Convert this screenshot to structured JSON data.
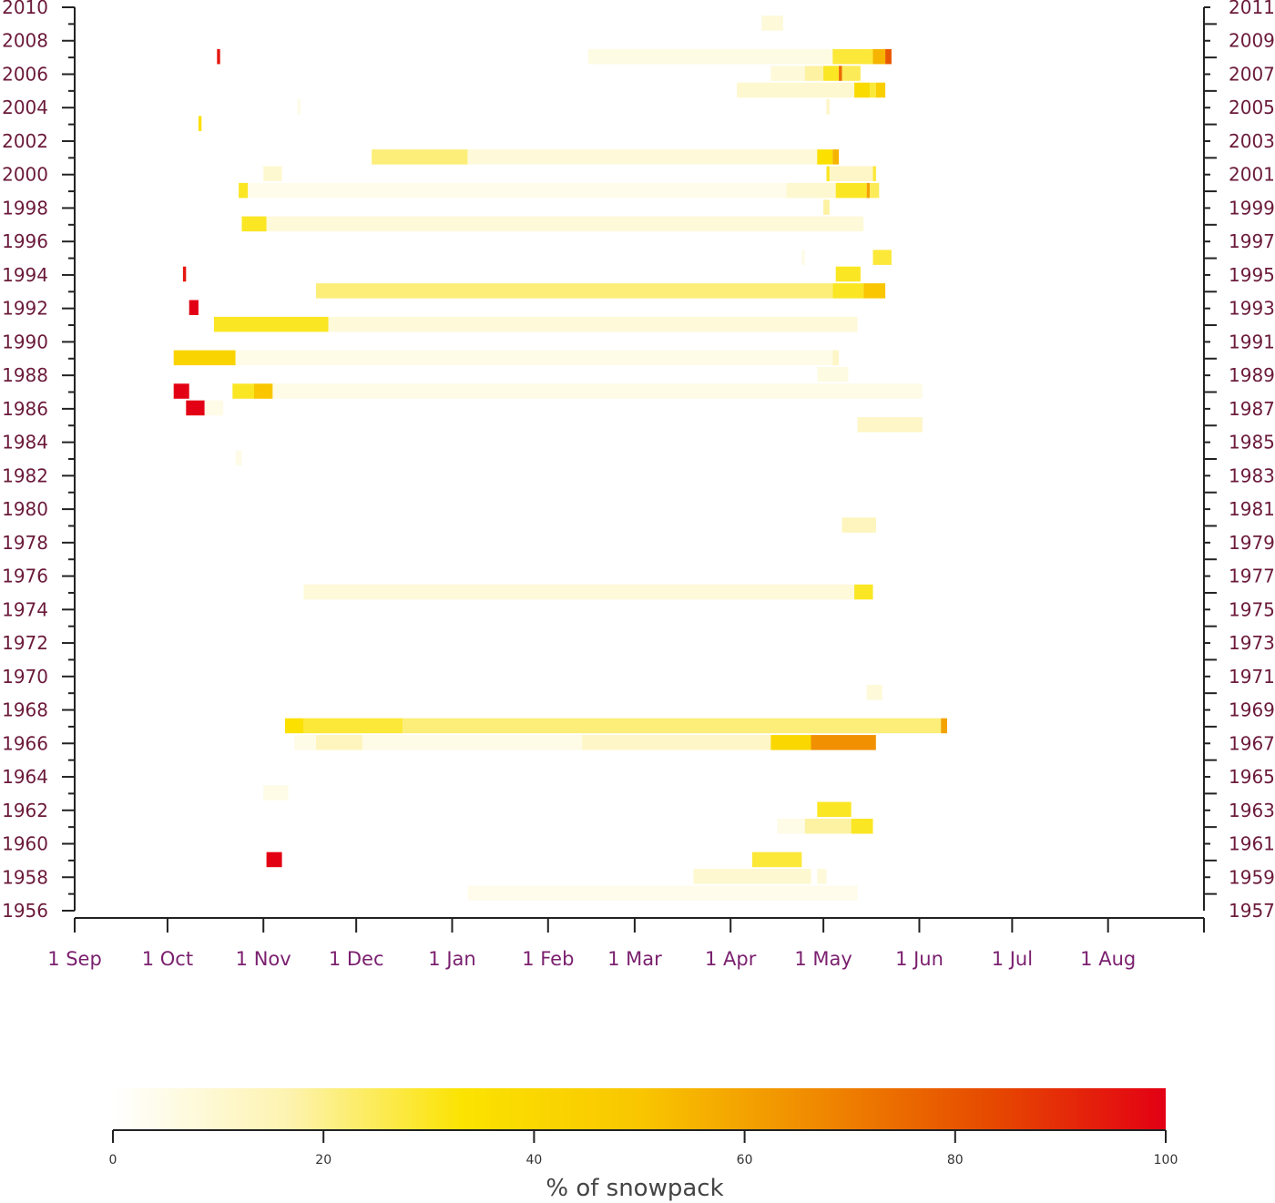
{
  "chart_data": {
    "type": "heatmap",
    "title": "",
    "colorbar": {
      "label": "% of snowpack",
      "range": [
        0,
        100
      ],
      "ticks": [
        "0",
        "20",
        "40",
        "60",
        "80",
        "100"
      ],
      "colors": [
        "#ffffff",
        "#fdf3b0",
        "#fbe300",
        "#f9c600",
        "#f08a00",
        "#e64a00",
        "#e30014"
      ]
    },
    "x_axis": {
      "ticks": [
        {
          "label": "1 Sep",
          "day": 0
        },
        {
          "label": "1 Oct",
          "day": 30
        },
        {
          "label": "1 Nov",
          "day": 61
        },
        {
          "label": "1 Dec",
          "day": 91
        },
        {
          "label": "1 Jan",
          "day": 122
        },
        {
          "label": "1 Feb",
          "day": 153
        },
        {
          "label": "1 Mar",
          "day": 181
        },
        {
          "label": "1 Apr",
          "day": 212
        },
        {
          "label": "1 May",
          "day": 242
        },
        {
          "label": "1 Jun",
          "day": 273
        },
        {
          "label": "1 Jul",
          "day": 303
        },
        {
          "label": "1 Aug",
          "day": 334
        }
      ],
      "range": [
        0,
        365
      ]
    },
    "y_axis_left": {
      "labels": [
        "2010",
        "2008",
        "2006",
        "2004",
        "2002",
        "2000",
        "1998",
        "1996",
        "1994",
        "1992",
        "1990",
        "1988",
        "1986",
        "1984",
        "1982",
        "1980",
        "1978",
        "1976",
        "1974",
        "1972",
        "1970",
        "1968",
        "1966",
        "1964",
        "1962",
        "1960",
        "1958",
        "1956"
      ],
      "range": [
        1956,
        2010
      ]
    },
    "y_axis_right": {
      "labels": [
        "2011",
        "2009",
        "2007",
        "2005",
        "2003",
        "2001",
        "1999",
        "1997",
        "1995",
        "1993",
        "1991",
        "1989",
        "1987",
        "1985",
        "1983",
        "1981",
        "1979",
        "1977",
        "1975",
        "1973",
        "1971",
        "1969",
        "1967",
        "1965",
        "1963",
        "1961",
        "1959",
        "1957"
      ]
    },
    "cells": [
      {
        "year": 2009,
        "segments": [
          [
            222,
            229,
            8
          ]
        ]
      },
      {
        "year": 2007,
        "segments": [
          [
            46,
            47,
            95
          ],
          [
            166,
            245,
            6
          ],
          [
            245,
            258,
            28
          ],
          [
            258,
            262,
            55
          ],
          [
            262,
            264,
            80
          ]
        ]
      },
      {
        "year": 2006,
        "segments": [
          [
            225,
            236,
            8
          ],
          [
            236,
            242,
            18
          ],
          [
            242,
            247,
            30
          ],
          [
            247,
            248,
            75
          ],
          [
            248,
            254,
            25
          ]
        ]
      },
      {
        "year": 2005,
        "segments": [
          [
            214,
            252,
            10
          ],
          [
            252,
            257,
            38
          ],
          [
            257,
            259,
            28
          ],
          [
            259,
            262,
            45
          ]
        ]
      },
      {
        "year": 2004,
        "segments": [
          [
            72,
            73,
            5
          ],
          [
            243,
            244,
            12
          ]
        ]
      },
      {
        "year": 2003,
        "segments": [
          [
            40,
            41,
            35
          ]
        ]
      },
      {
        "year": 2001,
        "segments": [
          [
            96,
            127,
            22
          ],
          [
            127,
            240,
            8
          ],
          [
            240,
            245,
            35
          ],
          [
            245,
            247,
            55
          ]
        ]
      },
      {
        "year": 2000,
        "segments": [
          [
            61,
            67,
            10
          ],
          [
            243,
            244,
            30
          ],
          [
            244,
            258,
            12
          ],
          [
            258,
            259,
            28
          ]
        ]
      },
      {
        "year": 1999,
        "segments": [
          [
            53,
            56,
            30
          ],
          [
            56,
            230,
            4
          ],
          [
            230,
            246,
            10
          ],
          [
            246,
            256,
            30
          ],
          [
            256,
            257,
            60
          ],
          [
            257,
            260,
            25
          ]
        ]
      },
      {
        "year": 1998,
        "segments": [
          [
            242,
            244,
            18
          ]
        ]
      },
      {
        "year": 1997,
        "segments": [
          [
            54,
            62,
            30
          ],
          [
            62,
            255,
            8
          ]
        ]
      },
      {
        "year": 1995,
        "segments": [
          [
            235,
            236,
            5
          ],
          [
            258,
            264,
            28
          ]
        ]
      },
      {
        "year": 1994,
        "segments": [
          [
            35,
            36,
            95
          ]
        ]
      },
      {
        "year": 1994,
        "segments": [
          [
            246,
            254,
            30
          ]
        ]
      },
      {
        "year": 1993,
        "segments": [
          [
            78,
            245,
            22
          ],
          [
            245,
            255,
            30
          ],
          [
            255,
            262,
            50
          ]
        ]
      },
      {
        "year": 1992,
        "segments": [
          [
            37,
            40,
            100
          ]
        ]
      },
      {
        "year": 1991,
        "segments": [
          [
            45,
            82,
            30
          ],
          [
            82,
            253,
            8
          ]
        ]
      },
      {
        "year": 1989,
        "segments": [
          [
            32,
            52,
            42
          ],
          [
            52,
            245,
            5
          ],
          [
            245,
            247,
            12
          ]
        ]
      },
      {
        "year": 1988,
        "segments": [
          [
            240,
            250,
            6
          ]
        ]
      },
      {
        "year": 1987,
        "segments": [
          [
            32,
            37,
            100
          ],
          [
            51,
            58,
            30
          ],
          [
            58,
            64,
            50
          ],
          [
            64,
            274,
            5
          ]
        ]
      },
      {
        "year": 1986,
        "segments": [
          [
            36,
            42,
            100
          ],
          [
            42,
            48,
            5
          ]
        ]
      },
      {
        "year": 1985,
        "segments": [
          [
            253,
            274,
            12
          ]
        ]
      },
      {
        "year": 1983,
        "segments": [
          [
            52,
            54,
            5
          ]
        ]
      },
      {
        "year": 1979,
        "segments": [
          [
            248,
            259,
            14
          ]
        ]
      },
      {
        "year": 1975,
        "segments": [
          [
            74,
            252,
            8
          ],
          [
            252,
            258,
            30
          ]
        ]
      },
      {
        "year": 1969,
        "segments": [
          [
            256,
            261,
            8
          ]
        ]
      },
      {
        "year": 1967,
        "segments": [
          [
            68,
            74,
            35
          ],
          [
            74,
            106,
            28
          ],
          [
            106,
            280,
            22
          ],
          [
            280,
            282,
            60
          ]
        ]
      },
      {
        "year": 1966,
        "segments": [
          [
            71,
            78,
            5
          ],
          [
            78,
            93,
            14
          ],
          [
            93,
            164,
            5
          ],
          [
            164,
            225,
            12
          ],
          [
            225,
            238,
            40
          ],
          [
            238,
            259,
            65
          ]
        ]
      },
      {
        "year": 1963,
        "segments": [
          [
            61,
            69,
            5
          ]
        ]
      },
      {
        "year": 1962,
        "segments": [
          [
            240,
            251,
            30
          ]
        ]
      },
      {
        "year": 1961,
        "segments": [
          [
            227,
            236,
            5
          ],
          [
            236,
            251,
            18
          ],
          [
            251,
            258,
            30
          ]
        ]
      },
      {
        "year": 1959,
        "segments": [
          [
            62,
            67,
            100
          ],
          [
            219,
            235,
            28
          ]
        ]
      },
      {
        "year": 1958,
        "segments": [
          [
            200,
            238,
            10
          ],
          [
            240,
            243,
            8
          ]
        ]
      },
      {
        "year": 1957,
        "segments": [
          [
            127,
            253,
            4
          ]
        ]
      }
    ]
  }
}
